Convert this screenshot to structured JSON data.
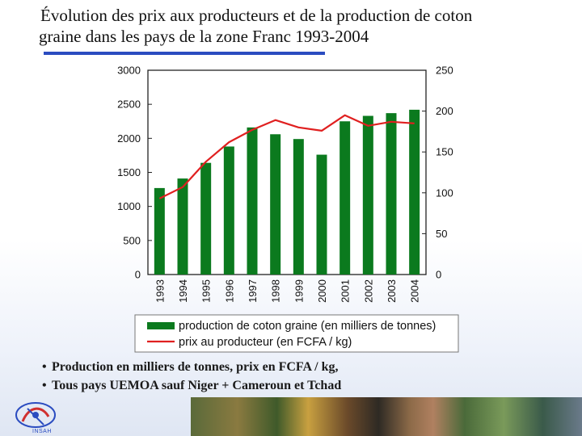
{
  "title": {
    "line1": "Évolution des prix aux producteurs et de la production de coton",
    "line2": "graine dans les pays de la zone Franc 1993-2004"
  },
  "chart_data": {
    "type": "bar",
    "categories": [
      "1993",
      "1994",
      "1995",
      "1996",
      "1997",
      "1998",
      "1999",
      "2000",
      "2001",
      "2002",
      "2003",
      "2004"
    ],
    "series": [
      {
        "name": "production de coton graine (en milliers de tonnes)",
        "kind": "bar",
        "axis": "left",
        "color": "#0b7a1e",
        "values": [
          1270,
          1410,
          1640,
          1880,
          2160,
          2060,
          1990,
          1760,
          2250,
          2330,
          2370,
          2420
        ]
      },
      {
        "name": "prix au producteur (en FCFA / kg)",
        "kind": "line",
        "axis": "right",
        "color": "#e02020",
        "values": [
          93,
          107,
          138,
          162,
          177,
          189,
          180,
          176,
          195,
          182,
          187,
          185
        ]
      }
    ],
    "left_axis": {
      "ylim": [
        0,
        3000
      ],
      "ticks": [
        "0",
        "500",
        "1000",
        "1500",
        "2000",
        "2500",
        "3000"
      ]
    },
    "right_axis": {
      "ylim": [
        0,
        250
      ],
      "ticks": [
        "0",
        "50",
        "100",
        "150",
        "200",
        "250"
      ]
    },
    "legend": {
      "placement": "bottom",
      "entries": [
        "production de coton graine (en milliers de tonnes)",
        "prix au producteur (en FCFA / kg)"
      ]
    },
    "grid": false
  },
  "notes": [
    "Production en milliers de tonnes, prix en FCFA / kg,",
    "Tous pays UEMOA sauf Niger + Cameroun et Tchad"
  ],
  "colors": {
    "accent_rule": "#2b4cc0",
    "bar": "#0b7a1e",
    "line": "#e02020",
    "plot_bg": "#ffffff"
  },
  "logo": {
    "label": "INSAH"
  }
}
